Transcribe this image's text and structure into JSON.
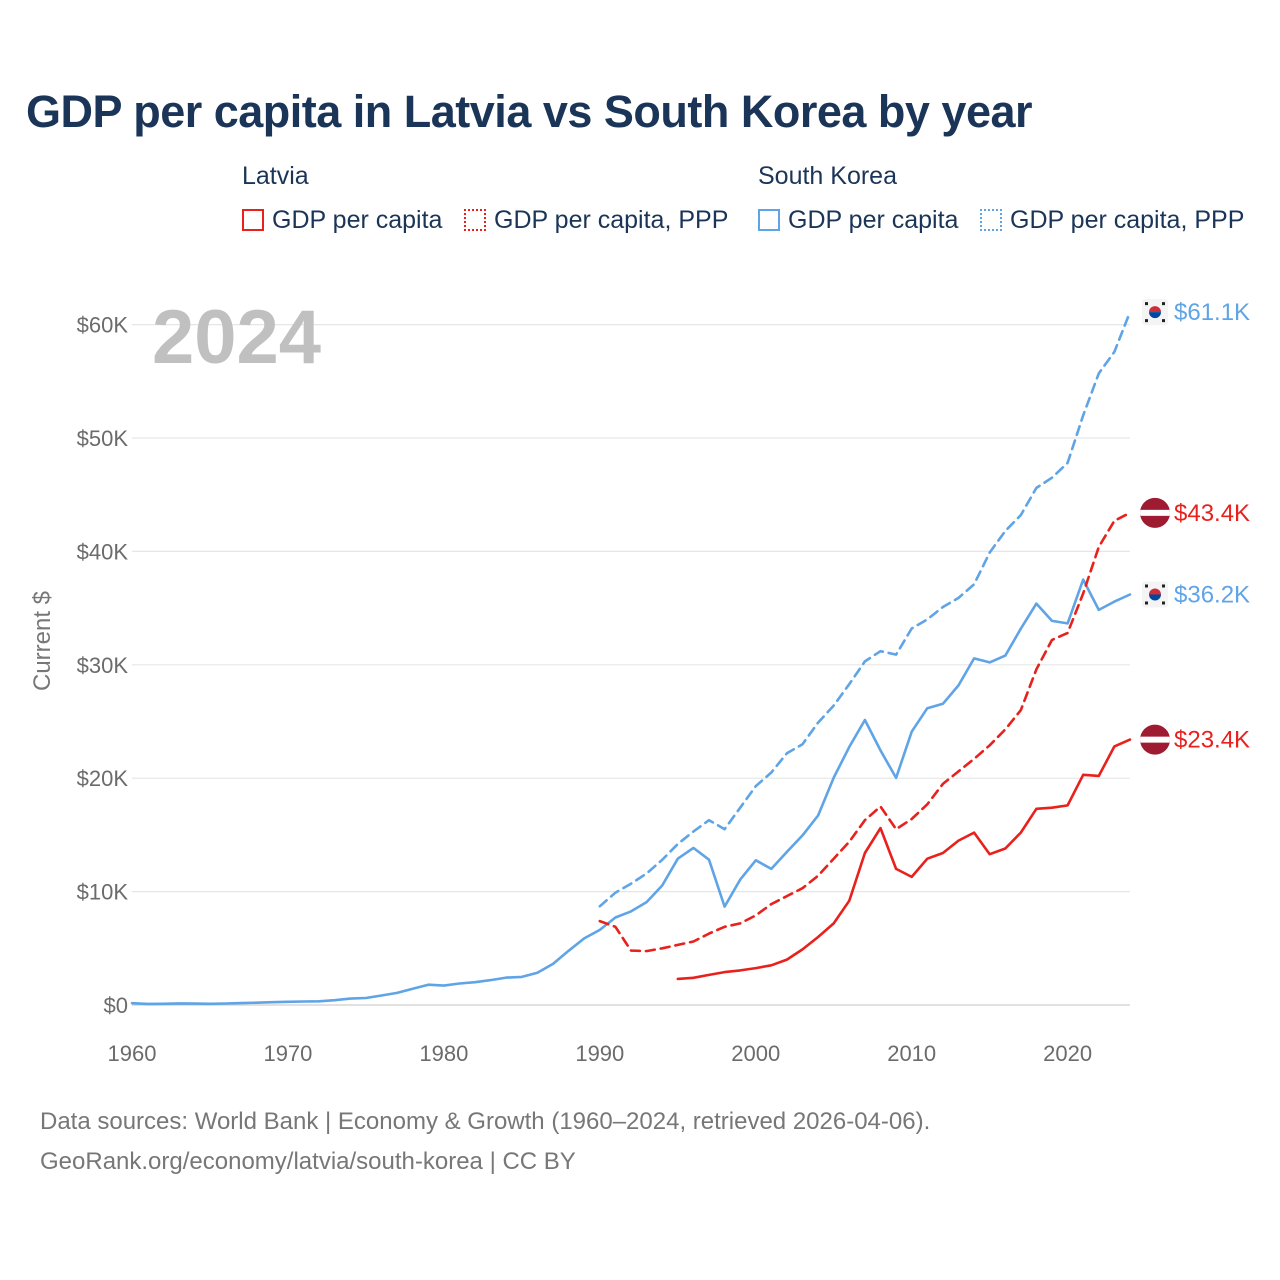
{
  "header": {
    "title": "GDP per capita in Latvia vs South Korea by year"
  },
  "legend": {
    "groups": [
      {
        "name": "Latvia",
        "items": [
          "GDP per capita",
          "GDP per capita, PPP"
        ]
      },
      {
        "name": "South Korea",
        "items": [
          "GDP per capita",
          "GDP per capita, PPP"
        ]
      }
    ]
  },
  "overlay": {
    "year": "2024"
  },
  "footer": {
    "line1": "Data sources: World Bank | Economy & Growth (1960–2024, retrieved 2026-04-06).",
    "line2": "GeoRank.org/economy/latvia/south-korea | CC BY"
  },
  "colors": {
    "latvia": "#e8211d",
    "south_korea": "#5fa4e6",
    "grid": "#e6e6e6",
    "flag_lv": "#9e1b32"
  },
  "chart_data": {
    "type": "line",
    "title": "GDP per capita in Latvia vs South Korea by year",
    "xlabel": "",
    "ylabel": "Current $",
    "xlim": [
      1960,
      2024
    ],
    "ylim": [
      0,
      62000
    ],
    "x_ticks": [
      1960,
      1970,
      1980,
      1990,
      2000,
      2010,
      2020
    ],
    "x_tick_labels": [
      "1960",
      "1970",
      "1980",
      "1990",
      "2000",
      "2010",
      "2020"
    ],
    "y_ticks": [
      0,
      10000,
      20000,
      30000,
      40000,
      50000,
      60000
    ],
    "y_tick_labels": [
      "$0",
      "$10K",
      "$20K",
      "$30K",
      "$40K",
      "$50K",
      "$60K"
    ],
    "grid": true,
    "series": [
      {
        "name": "South Korea GDP per capita, PPP",
        "country": "south_korea",
        "style": "dashed",
        "end_label": "$61.1K",
        "x": [
          1990,
          1991,
          1992,
          1993,
          1994,
          1995,
          1996,
          1997,
          1998,
          1999,
          2000,
          2001,
          2002,
          2003,
          2004,
          2005,
          2006,
          2007,
          2008,
          2009,
          2010,
          2011,
          2012,
          2013,
          2014,
          2015,
          2016,
          2017,
          2018,
          2019,
          2020,
          2021,
          2022,
          2023,
          2024
        ],
        "values": [
          8700,
          9900,
          10700,
          11600,
          12800,
          14200,
          15300,
          16300,
          15500,
          17400,
          19300,
          20500,
          22200,
          23000,
          24900,
          26400,
          28300,
          30300,
          31200,
          30900,
          33200,
          34000,
          35100,
          35900,
          37100,
          39900,
          41800,
          43200,
          45600,
          46500,
          47800,
          52000,
          55700,
          57600,
          61100
        ]
      },
      {
        "name": "South Korea GDP per capita",
        "country": "south_korea",
        "style": "solid",
        "end_label": "$36.2K",
        "x": [
          1960,
          1961,
          1962,
          1963,
          1964,
          1965,
          1966,
          1967,
          1968,
          1969,
          1970,
          1971,
          1972,
          1973,
          1974,
          1975,
          1976,
          1977,
          1978,
          1979,
          1980,
          1981,
          1982,
          1983,
          1984,
          1985,
          1986,
          1987,
          1988,
          1989,
          1990,
          1991,
          1992,
          1993,
          1994,
          1995,
          1996,
          1997,
          1998,
          1999,
          2000,
          2001,
          2002,
          2003,
          2004,
          2005,
          2006,
          2007,
          2008,
          2009,
          2010,
          2011,
          2012,
          2013,
          2014,
          2015,
          2016,
          2017,
          2018,
          2019,
          2020,
          2021,
          2022,
          2023,
          2024
        ],
        "values": [
          160,
          95,
          110,
          145,
          125,
          110,
          135,
          165,
          200,
          250,
          280,
          310,
          330,
          420,
          560,
          620,
          840,
          1070,
          1440,
          1790,
          1710,
          1900,
          2010,
          2200,
          2420,
          2480,
          2850,
          3620,
          4780,
          5870,
          6620,
          7720,
          8250,
          9070,
          10540,
          12900,
          13850,
          12810,
          8680,
          11060,
          12760,
          12000,
          13500,
          14960,
          16710,
          20040,
          22760,
          25130,
          22450,
          20030,
          24100,
          26170,
          26560,
          28180,
          30560,
          30210,
          30810,
          33180,
          35400,
          33870,
          33650,
          37510,
          34840,
          35570,
          36200
        ]
      },
      {
        "name": "Latvia GDP per capita, PPP",
        "country": "latvia",
        "style": "dashed",
        "end_label": "$43.4K",
        "x": [
          1990,
          1991,
          1992,
          1993,
          1994,
          1995,
          1996,
          1997,
          1998,
          1999,
          2000,
          2001,
          2002,
          2003,
          2004,
          2005,
          2006,
          2007,
          2008,
          2009,
          2010,
          2011,
          2012,
          2013,
          2014,
          2015,
          2016,
          2017,
          2018,
          2019,
          2020,
          2021,
          2022,
          2023,
          2024
        ],
        "values": [
          7400,
          6900,
          4800,
          4750,
          5000,
          5300,
          5600,
          6300,
          6900,
          7200,
          7900,
          8900,
          9600,
          10300,
          11400,
          12900,
          14400,
          16300,
          17500,
          15500,
          16400,
          17700,
          19500,
          20600,
          21700,
          22900,
          24300,
          26000,
          29600,
          32200,
          32800,
          36300,
          40400,
          42700,
          43400
        ]
      },
      {
        "name": "Latvia GDP per capita",
        "country": "latvia",
        "style": "solid",
        "end_label": "$23.4K",
        "x": [
          1995,
          1996,
          1997,
          1998,
          1999,
          2000,
          2001,
          2002,
          2003,
          2004,
          2005,
          2006,
          2007,
          2008,
          2009,
          2010,
          2011,
          2012,
          2013,
          2014,
          2015,
          2016,
          2017,
          2018,
          2019,
          2020,
          2021,
          2022,
          2023,
          2024
        ],
        "values": [
          2300,
          2400,
          2650,
          2900,
          3050,
          3250,
          3500,
          4000,
          4900,
          6000,
          7200,
          9200,
          13400,
          15600,
          12000,
          11300,
          12900,
          13400,
          14500,
          15200,
          13300,
          13800,
          15200,
          17300,
          17400,
          17600,
          20300,
          20200,
          22800,
          23400
        ]
      }
    ]
  }
}
